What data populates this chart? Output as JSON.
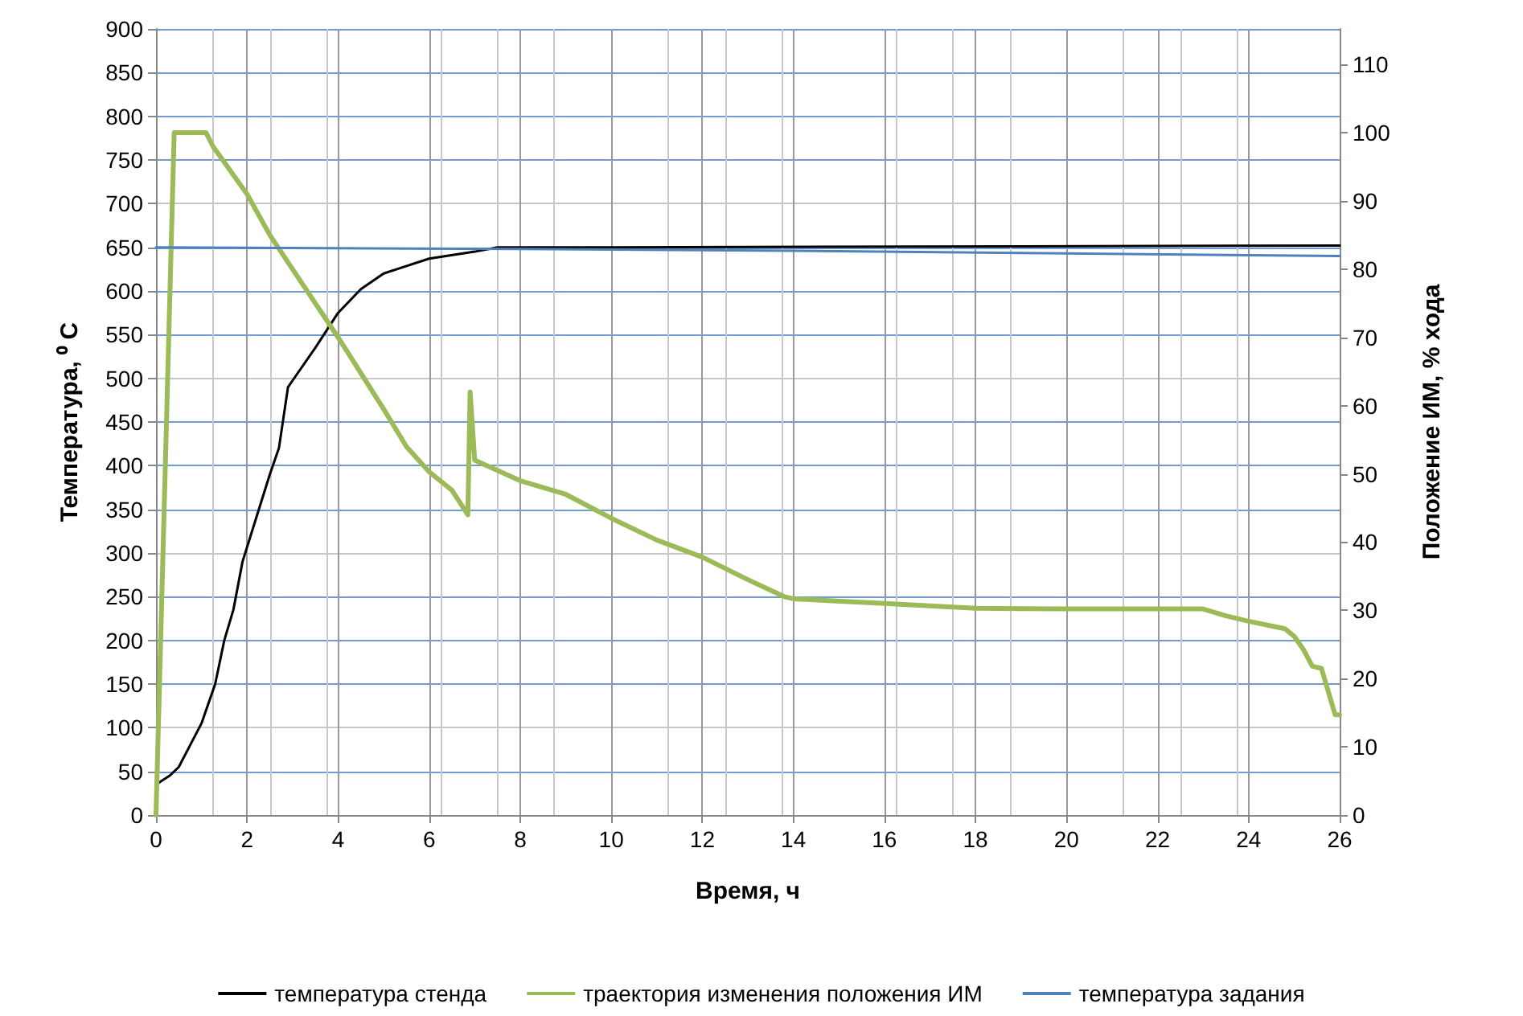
{
  "chart_data": {
    "type": "line",
    "xlabel": "Время, ч",
    "ylabel": "Температура, ⁰ С",
    "y2label": "Положение ИМ, % хода",
    "xlim": [
      0,
      26
    ],
    "xticks": [
      0,
      2,
      4,
      6,
      8,
      10,
      12,
      14,
      16,
      18,
      20,
      22,
      24,
      26
    ],
    "ylim": [
      0,
      900
    ],
    "yticks": [
      0,
      50,
      100,
      150,
      200,
      250,
      300,
      350,
      400,
      450,
      500,
      550,
      600,
      650,
      700,
      750,
      800,
      850,
      900
    ],
    "y2lim": [
      0,
      115.2
    ],
    "y2ticks": [
      0,
      10,
      20,
      30,
      40,
      50,
      60,
      70,
      80,
      90,
      100,
      110
    ],
    "grid": true,
    "legend": "bottom",
    "marker": "none",
    "line_style": "solid",
    "series": [
      {
        "name": "температура стенда",
        "color": "#000000",
        "x": [
          0,
          0.3,
          0.5,
          0.8,
          1,
          1.3,
          1.5,
          1.7,
          1.9,
          2.2,
          2.5,
          2.7,
          2.9,
          3.1,
          3.5,
          4,
          4.5,
          5,
          6,
          7,
          7.5,
          10,
          26
        ],
        "values": [
          35,
          45,
          55,
          85,
          105,
          150,
          200,
          235,
          290,
          340,
          390,
          420,
          490,
          505,
          535,
          575,
          602,
          620,
          637,
          645,
          650,
          650,
          652
        ]
      },
      {
        "name": "траектория изменения положения ИМ",
        "color": "#9bbb59",
        "axis": "y2",
        "x": [
          0,
          0.4,
          1.1,
          1.25,
          2,
          2.5,
          3,
          4,
          5,
          5.5,
          6,
          6.5,
          6.85,
          6.9,
          7,
          8,
          9,
          10,
          11,
          12,
          13,
          13.8,
          14,
          16,
          18,
          20,
          22,
          23,
          23.5,
          24,
          24.8,
          25,
          25.2,
          25.4,
          25.6,
          25.9,
          26
        ],
        "values": [
          0,
          100,
          100,
          98,
          91,
          85,
          80,
          70,
          59.5,
          54,
          50.3,
          47.6,
          44,
          62,
          52,
          49,
          47,
          43.5,
          40.3,
          37.8,
          34.5,
          32,
          31.7,
          31,
          30.3,
          30.2,
          30.2,
          30.2,
          29.2,
          28.4,
          27.3,
          26.2,
          24.3,
          21.8,
          21.5,
          14.7,
          14.7
        ]
      },
      {
        "name": "температура задания",
        "color": "#4f81bd",
        "x": [
          0,
          8,
          14,
          20,
          26
        ],
        "values": [
          650,
          648,
          646,
          643,
          640
        ]
      }
    ]
  }
}
